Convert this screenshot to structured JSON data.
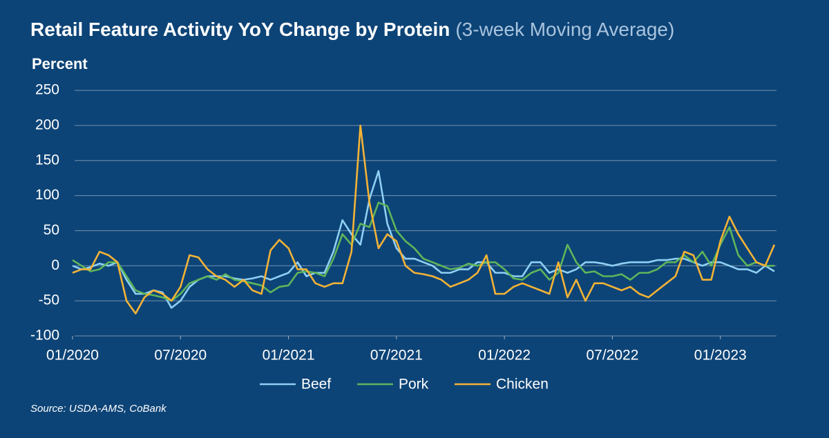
{
  "chart_data": {
    "type": "line",
    "title": "Retail Feature Activity YoY Change by Protein",
    "subtitle": "(3-week Moving Average)",
    "y_label": "Percent",
    "source": "Source: USDA-AMS, CoBank",
    "x": [
      2020,
      2020.042,
      2020.083,
      2020.125,
      2020.167,
      2020.208,
      2020.25,
      2020.292,
      2020.333,
      2020.375,
      2020.417,
      2020.458,
      2020.5,
      2020.542,
      2020.583,
      2020.625,
      2020.667,
      2020.708,
      2020.75,
      2020.792,
      2020.833,
      2020.875,
      2020.917,
      2020.958,
      2021,
      2021.042,
      2021.083,
      2021.125,
      2021.167,
      2021.208,
      2021.25,
      2021.292,
      2021.333,
      2021.375,
      2021.417,
      2021.458,
      2021.5,
      2021.542,
      2021.583,
      2021.625,
      2021.667,
      2021.708,
      2021.75,
      2021.792,
      2021.833,
      2021.875,
      2021.917,
      2021.958,
      2022,
      2022.042,
      2022.083,
      2022.125,
      2022.167,
      2022.208,
      2022.25,
      2022.292,
      2022.333,
      2022.375,
      2022.417,
      2022.458,
      2022.5,
      2022.542,
      2022.583,
      2022.625,
      2022.667,
      2022.708,
      2022.75,
      2022.792,
      2022.833,
      2022.875,
      2022.917,
      2022.958,
      2023,
      2023.042,
      2023.083,
      2023.125,
      2023.167,
      2023.208,
      2023.25
    ],
    "series": [
      {
        "name": "Beef",
        "color": "#8fd0f5",
        "values": [
          0,
          -5,
          -2,
          3,
          0,
          5,
          -20,
          -40,
          -40,
          -35,
          -38,
          -60,
          -50,
          -30,
          -20,
          -15,
          -15,
          -15,
          -18,
          -20,
          -18,
          -15,
          -20,
          -15,
          -10,
          5,
          -15,
          -10,
          -10,
          20,
          65,
          45,
          30,
          95,
          135,
          60,
          25,
          10,
          10,
          5,
          0,
          -10,
          -10,
          -5,
          -5,
          5,
          5,
          -10,
          -10,
          -15,
          -15,
          5,
          5,
          -10,
          -5,
          -10,
          -5,
          5,
          5,
          3,
          0,
          3,
          5,
          5,
          5,
          8,
          8,
          10,
          10,
          5,
          0,
          5,
          5,
          0,
          -5,
          -5,
          -10,
          0,
          -8
        ]
      },
      {
        "name": "Pork",
        "color": "#5fb65a",
        "values": [
          8,
          0,
          -8,
          -5,
          5,
          5,
          -15,
          -35,
          -40,
          -42,
          -45,
          -50,
          -40,
          -25,
          -20,
          -15,
          -20,
          -12,
          -20,
          -22,
          -25,
          -28,
          -38,
          -30,
          -28,
          -10,
          -8,
          -10,
          -15,
          10,
          45,
          30,
          60,
          55,
          90,
          85,
          50,
          35,
          25,
          10,
          5,
          0,
          -5,
          -3,
          3,
          0,
          5,
          5,
          -5,
          -18,
          -20,
          -10,
          -5,
          -20,
          -10,
          30,
          5,
          -10,
          -8,
          -15,
          -15,
          -12,
          -20,
          -10,
          -10,
          -5,
          5,
          5,
          15,
          5,
          20,
          0,
          30,
          55,
          15,
          0,
          5,
          0,
          0
        ]
      },
      {
        "name": "Chicken",
        "color": "#f5b335",
        "values": [
          -10,
          -5,
          -5,
          20,
          15,
          5,
          -50,
          -68,
          -45,
          -35,
          -40,
          -50,
          -30,
          15,
          12,
          -5,
          -15,
          -20,
          -30,
          -20,
          -35,
          -40,
          22,
          37,
          25,
          -5,
          -5,
          -25,
          -30,
          -25,
          -25,
          20,
          200,
          90,
          25,
          45,
          35,
          0,
          -10,
          -12,
          -15,
          -20,
          -30,
          -25,
          -20,
          -10,
          15,
          -40,
          -40,
          -30,
          -25,
          -30,
          -35,
          -40,
          5,
          -45,
          -20,
          -50,
          -25,
          -25,
          -30,
          -35,
          -30,
          -40,
          -45,
          -35,
          -25,
          -15,
          20,
          15,
          -20,
          -20,
          35,
          70,
          45,
          25,
          5,
          0,
          30
        ]
      }
    ],
    "xlim": [
      2020,
      2023.26
    ],
    "xticks": [
      {
        "value": 2020,
        "label": "01/2020"
      },
      {
        "value": 2020.5,
        "label": "07/2020"
      },
      {
        "value": 2021,
        "label": "01/2021"
      },
      {
        "value": 2021.5,
        "label": "07/2021"
      },
      {
        "value": 2022,
        "label": "01/2022"
      },
      {
        "value": 2022.5,
        "label": "07/2022"
      },
      {
        "value": 2023,
        "label": "01/2023"
      }
    ],
    "ylim": [
      -100,
      250
    ],
    "yticks": [
      -100,
      -50,
      0,
      50,
      100,
      150,
      200,
      250
    ],
    "grid": true,
    "legend": "bottom"
  }
}
